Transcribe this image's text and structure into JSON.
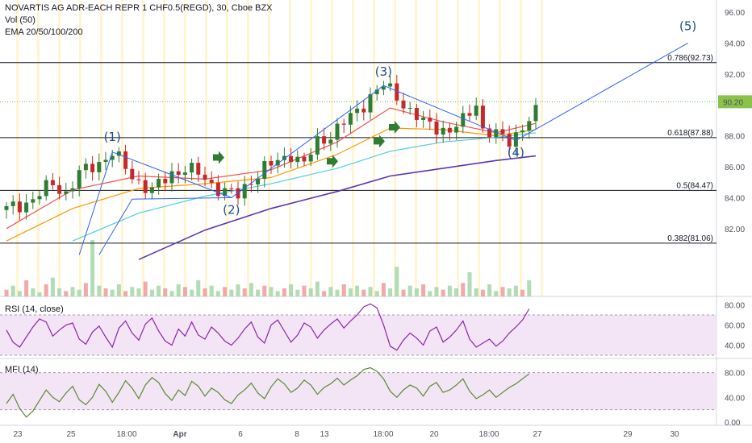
{
  "header": {
    "symbol_line": "NOVARTIS AG ADR-EACH REPR 1 CHF0.5(REGD), 30, Cboe BZX",
    "volume_line": "Vol (50)",
    "ema_line": "EMA 20/50/100/200"
  },
  "panes": {
    "rsi_label": "RSI (14, close)",
    "mfi_label": "MFI (14)"
  },
  "colors": {
    "candle_up": "#2e7d32",
    "candle_down": "#c62828",
    "ema20": "#ef5350",
    "ema50": "#ff9800",
    "ema100": "#4dd0e1",
    "ema200": "#5e35b1",
    "wave_line": "#2962ff",
    "rsi_line": "#8e24aa",
    "mfi_line": "#558b2f",
    "band_fill": "#f3e5f5",
    "price_label_bg": "#8bc34a",
    "arrow": "#2e7d32"
  },
  "chart_data": {
    "type": "candlestick",
    "main_axis": {
      "ylim": [
        80,
        97
      ],
      "ticks": [
        "96.00",
        "94.00",
        "92.00",
        "90.00",
        "88.00",
        "86.00",
        "84.00",
        "82.00"
      ],
      "tick_values": [
        96,
        94,
        92,
        90,
        88,
        86,
        84,
        82
      ]
    },
    "current_price": {
      "value": 90.2,
      "label": "90.20"
    },
    "x_labels": [
      "23",
      "25",
      "18:00",
      "Apr",
      "6",
      "8",
      "13",
      "18:00",
      "20",
      "18:00",
      "27",
      "29",
      "30"
    ],
    "fib_levels": [
      {
        "label": "0.786(92.73)",
        "value": 92.73
      },
      {
        "label": "0.618(87.88)",
        "value": 87.88
      },
      {
        "label": "0.5(84.47)",
        "value": 84.47
      },
      {
        "label": "0.382(81.06)",
        "value": 81.06
      }
    ],
    "waves": [
      {
        "label": "(1)",
        "value": 86.95
      },
      {
        "label": "(2)",
        "value": 84.0
      },
      {
        "label": "(3)",
        "value": 91.25
      },
      {
        "label": "(4)",
        "value": 87.7
      },
      {
        "label": "(5)",
        "value": 94.0
      }
    ],
    "price_path": [
      [
        0,
        83.2
      ],
      [
        4,
        83.9
      ],
      [
        7,
        84.9
      ],
      [
        9,
        84.3
      ],
      [
        11,
        85.5
      ],
      [
        14,
        86.3
      ],
      [
        16,
        86.9
      ],
      [
        19,
        85.4
      ],
      [
        22,
        84.4
      ],
      [
        25,
        85.6
      ],
      [
        27,
        85.9
      ],
      [
        29,
        85.5
      ],
      [
        31,
        84.9
      ],
      [
        33,
        84.4
      ],
      [
        35,
        84.1
      ],
      [
        37,
        85.2
      ],
      [
        39,
        85.9
      ],
      [
        41,
        86.3
      ],
      [
        43,
        86.9
      ],
      [
        45,
        86.1
      ],
      [
        47,
        87.6
      ],
      [
        49,
        88.1
      ],
      [
        51,
        88.8
      ],
      [
        53,
        89.6
      ],
      [
        55,
        90.6
      ],
      [
        57,
        91.2
      ],
      [
        59,
        90.6
      ],
      [
        61,
        89.6
      ],
      [
        63,
        88.8
      ],
      [
        65,
        88.6
      ],
      [
        67,
        88.3
      ],
      [
        69,
        88.9
      ],
      [
        71,
        90.2
      ],
      [
        72,
        88.4
      ],
      [
        74,
        88.0
      ],
      [
        76,
        87.7
      ],
      [
        78,
        88.6
      ],
      [
        80,
        89.4
      ]
    ],
    "ema20": [
      [
        0,
        82.0
      ],
      [
        10,
        84.5
      ],
      [
        20,
        85.4
      ],
      [
        30,
        85.2
      ],
      [
        40,
        85.8
      ],
      [
        50,
        87.6
      ],
      [
        58,
        89.8
      ],
      [
        66,
        88.9
      ],
      [
        74,
        88.2
      ],
      [
        80,
        88.8
      ]
    ],
    "ema50": [
      [
        0,
        81.2
      ],
      [
        10,
        83.3
      ],
      [
        20,
        84.6
      ],
      [
        30,
        84.9
      ],
      [
        40,
        85.3
      ],
      [
        50,
        86.8
      ],
      [
        58,
        88.5
      ],
      [
        66,
        88.4
      ],
      [
        74,
        88.0
      ],
      [
        80,
        88.4
      ]
    ],
    "ema100": [
      [
        10,
        81.2
      ],
      [
        20,
        83.0
      ],
      [
        30,
        84.1
      ],
      [
        40,
        84.9
      ],
      [
        50,
        85.9
      ],
      [
        58,
        87.0
      ],
      [
        66,
        87.6
      ],
      [
        74,
        87.9
      ],
      [
        80,
        88.2
      ]
    ],
    "ema200": [
      [
        20,
        80.0
      ],
      [
        30,
        81.9
      ],
      [
        40,
        83.3
      ],
      [
        50,
        84.4
      ],
      [
        58,
        85.4
      ],
      [
        66,
        85.9
      ],
      [
        74,
        86.4
      ],
      [
        80,
        86.7
      ]
    ],
    "rsi": {
      "ylim": [
        30,
        82
      ],
      "ticks": [
        "80.00",
        "60.00",
        "40.00"
      ],
      "tick_values": [
        80,
        60,
        40
      ],
      "band": [
        30,
        70
      ],
      "values": [
        55,
        43,
        38,
        48,
        58,
        66,
        63,
        49,
        55,
        60,
        62,
        46,
        41,
        53,
        59,
        48,
        38,
        57,
        64,
        52,
        45,
        61,
        67,
        54,
        44,
        40,
        56,
        49,
        63,
        50,
        46,
        58,
        52,
        44,
        40,
        47,
        56,
        63,
        48,
        42,
        60,
        65,
        54,
        43,
        50,
        62,
        58,
        47,
        55,
        61,
        66,
        57,
        64,
        70,
        78,
        81,
        77,
        60,
        39,
        35,
        45,
        52,
        47,
        40,
        54,
        58,
        43,
        48,
        55,
        64,
        46,
        38,
        42,
        46,
        39,
        44,
        52,
        58,
        65,
        76
      ]
    },
    "mfi": {
      "ylim": [
        0,
        90
      ],
      "ticks": [
        "80.00",
        "40.00",
        "0.00"
      ],
      "tick_values": [
        80,
        40,
        0
      ],
      "band": [
        20,
        80
      ],
      "values": [
        30,
        45,
        22,
        8,
        18,
        35,
        52,
        40,
        33,
        47,
        58,
        36,
        28,
        40,
        61,
        50,
        32,
        48,
        67,
        55,
        38,
        60,
        72,
        64,
        46,
        35,
        52,
        43,
        66,
        58,
        42,
        55,
        48,
        36,
        30,
        44,
        52,
        63,
        47,
        38,
        57,
        70,
        62,
        48,
        55,
        68,
        60,
        45,
        56,
        62,
        71,
        60,
        68,
        75,
        85,
        88,
        82,
        70,
        50,
        40,
        52,
        60,
        55,
        42,
        58,
        64,
        48,
        52,
        60,
        70,
        50,
        38,
        44,
        52,
        40,
        48,
        56,
        62,
        70,
        78
      ]
    },
    "volume_values": [
      5,
      8,
      4,
      12,
      6,
      3,
      9,
      14,
      6,
      4,
      7,
      5,
      10,
      42,
      8,
      6,
      5,
      9,
      4,
      7,
      6,
      11,
      5,
      8,
      6,
      4,
      9,
      7,
      5,
      12,
      6,
      8,
      4,
      7,
      5,
      9,
      6,
      10,
      5,
      8,
      7,
      4,
      6,
      9,
      5,
      8,
      6,
      11,
      4,
      7,
      5,
      9,
      6,
      8,
      5,
      7,
      4,
      10,
      6,
      22,
      5,
      8,
      6,
      9,
      4,
      7,
      5,
      8,
      6,
      10,
      18,
      6,
      5,
      9,
      4,
      7,
      6,
      8,
      5,
      12
    ]
  }
}
